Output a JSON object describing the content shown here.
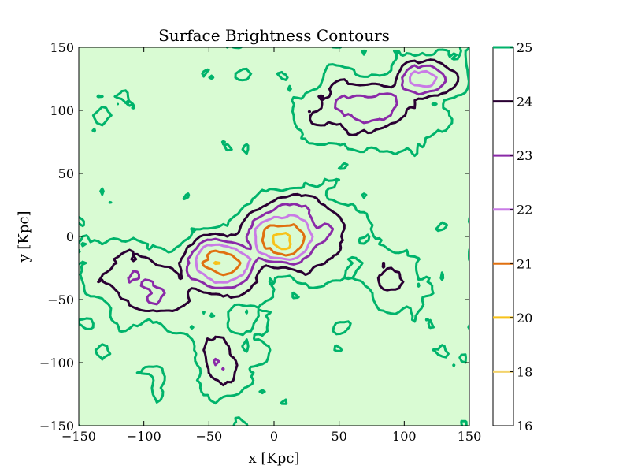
{
  "chart_data": {
    "type": "contour",
    "title": "Surface Brightness Contours",
    "xlabel": "x [Kpc]",
    "ylabel": "y [Kpc]",
    "xlim": [
      -150,
      150
    ],
    "ylim": [
      -150,
      150
    ],
    "x_ticks": [
      -150,
      -100,
      -50,
      0,
      50,
      100,
      150
    ],
    "y_ticks": [
      -150,
      -100,
      -50,
      0,
      50,
      100,
      150
    ],
    "grid": false,
    "background_color": "#d9fbd3",
    "levels": [
      16,
      18,
      20,
      21,
      22,
      23,
      24,
      25
    ],
    "level_colors": {
      "25": "#00b36b",
      "24": "#2a0033",
      "23": "#8a2aa8",
      "22": "#c97be6",
      "21": "#e07010",
      "20": "#f7c21a",
      "18": "#f3d36b",
      "16": "#ffffff"
    },
    "colorbar": {
      "position": "right",
      "tick_labels": [
        "16",
        "18",
        "20",
        "21",
        "22",
        "23",
        "24",
        "25"
      ],
      "line_levels": [
        18,
        20,
        21,
        22,
        23,
        24,
        25
      ]
    },
    "emission_regions": [
      {
        "x": -40,
        "y": -20,
        "sx": 30,
        "sy": 22,
        "peak": 20
      },
      {
        "x": 10,
        "y": 0,
        "sx": 35,
        "sy": 25,
        "peak": 20
      },
      {
        "x": -100,
        "y": -40,
        "sx": 40,
        "sy": 30,
        "peak": 23
      },
      {
        "x": -40,
        "y": -95,
        "sx": 18,
        "sy": 30,
        "peak": 23
      },
      {
        "x": 70,
        "y": 100,
        "sx": 40,
        "sy": 25,
        "peak": 22
      },
      {
        "x": 115,
        "y": 125,
        "sx": 25,
        "sy": 15,
        "peak": 21
      },
      {
        "x": 85,
        "y": -40,
        "sx": 25,
        "sy": 30,
        "peak": 24
      },
      {
        "x": -25,
        "y": 128,
        "sx": 8,
        "sy": 6,
        "peak": 24
      },
      {
        "x": 5,
        "y": 160,
        "sx": 10,
        "sy": 8,
        "peak": 24
      }
    ]
  }
}
